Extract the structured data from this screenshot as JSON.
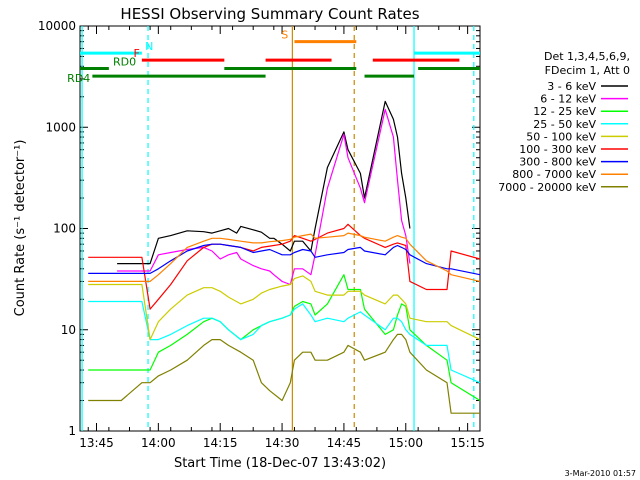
{
  "chart_data": {
    "type": "line",
    "title": "HESSI Observing Summary Count Rates",
    "xlabel": "Start Time (18-Dec-07 13:43:02)",
    "ylabel": "Count Rate (s⁻¹ detector⁻¹)",
    "x_unit": "minutes after 13:43:02",
    "xlim": [
      -2,
      95
    ],
    "ylim": [
      1,
      10000
    ],
    "y_scale": "log",
    "x_tick_labels": [
      "13:45",
      "14:00",
      "14:15",
      "14:30",
      "14:45",
      "15:00",
      "15:15"
    ],
    "x_tick_positions": [
      2,
      17,
      32,
      47,
      62,
      77,
      92
    ],
    "y_tick_labels": [
      "1",
      "10",
      "100",
      "1000",
      "10000"
    ],
    "y_tick_values": [
      1,
      10,
      100,
      1000,
      10000
    ],
    "legend_header": [
      "Det 1,3,4,5,6,9,",
      "FDecim 1, Att 0"
    ],
    "series": [
      {
        "name": "3 - 6 keV",
        "color": "#000000",
        "x": [
          7,
          8,
          15,
          17,
          20,
          24,
          28,
          30,
          32,
          34,
          36,
          37,
          40,
          42,
          44,
          45,
          47,
          49,
          50,
          52,
          54,
          55,
          58,
          62,
          63,
          66,
          67,
          72,
          74,
          75,
          76,
          77,
          78
        ],
        "y": [
          45,
          45,
          45,
          80,
          85,
          95,
          93,
          90,
          95,
          100,
          90,
          105,
          97,
          92,
          80,
          80,
          70,
          60,
          75,
          75,
          60,
          100,
          400,
          900,
          600,
          350,
          200,
          1800,
          1200,
          800,
          350,
          200,
          100
        ]
      },
      {
        "name": "6 - 12 keV",
        "color": "#ff00ff",
        "x": [
          7,
          8,
          15,
          17,
          20,
          24,
          28,
          30,
          32,
          34,
          36,
          37,
          40,
          42,
          44,
          45,
          47,
          49,
          50,
          52,
          54,
          55,
          58,
          62,
          63,
          66,
          67,
          72,
          74,
          75,
          76,
          77,
          78
        ],
        "y": [
          38,
          38,
          38,
          55,
          58,
          62,
          65,
          60,
          50,
          55,
          58,
          50,
          43,
          40,
          38,
          35,
          30,
          28,
          40,
          40,
          35,
          55,
          250,
          850,
          500,
          250,
          180,
          1500,
          800,
          300,
          120,
          85,
          45
        ]
      },
      {
        "name": "12 - 25 keV",
        "color": "#00ff00",
        "x": [
          0,
          7,
          8,
          15,
          17,
          20,
          24,
          28,
          30,
          32,
          34,
          37,
          40,
          42,
          44,
          47,
          49,
          50,
          52,
          54,
          55,
          58,
          62,
          63,
          66,
          67,
          72,
          74,
          75,
          76,
          77,
          78,
          82,
          87,
          88,
          95
        ],
        "y": [
          4,
          4,
          4,
          4,
          6,
          7,
          9,
          12,
          13,
          12,
          10,
          8,
          10,
          11,
          12,
          13,
          14,
          17,
          19,
          18,
          14,
          18,
          35,
          25,
          25,
          16,
          9,
          10,
          14,
          18,
          17,
          10,
          7,
          5,
          3,
          2
        ]
      },
      {
        "name": "25 - 50 keV",
        "color": "#00ffff",
        "x": [
          0,
          7,
          8,
          13,
          15,
          17,
          20,
          24,
          28,
          30,
          32,
          34,
          37,
          40,
          42,
          44,
          47,
          49,
          50,
          52,
          54,
          55,
          58,
          62,
          63,
          66,
          67,
          72,
          74,
          75,
          76,
          77,
          78,
          82,
          87,
          88,
          95
        ],
        "y": [
          19,
          19,
          19,
          19,
          8,
          8,
          9,
          11,
          13,
          13,
          12,
          10,
          8,
          9,
          11,
          12,
          13,
          14,
          16,
          18,
          14,
          12,
          13,
          12,
          13,
          15,
          14,
          10,
          13,
          13,
          12,
          10,
          9,
          7,
          7,
          4,
          3
        ]
      },
      {
        "name": "50 - 100 keV",
        "color": "#cccc00",
        "x": [
          0,
          7,
          8,
          13,
          15,
          17,
          20,
          24,
          28,
          30,
          32,
          34,
          37,
          40,
          42,
          44,
          47,
          49,
          50,
          52,
          54,
          55,
          58,
          62,
          63,
          66,
          67,
          72,
          74,
          75,
          76,
          77,
          78,
          82,
          87,
          88,
          95
        ],
        "y": [
          28,
          28,
          28,
          28,
          8,
          12,
          16,
          22,
          26,
          26,
          24,
          21,
          18,
          20,
          23,
          25,
          27,
          28,
          32,
          34,
          30,
          24,
          22,
          22,
          24,
          24,
          22,
          18,
          22,
          22,
          20,
          18,
          13,
          12,
          12,
          11,
          8
        ]
      },
      {
        "name": "100 - 300 keV",
        "color": "#ff0000",
        "x": [
          0,
          7,
          8,
          13,
          15,
          17,
          20,
          24,
          28,
          30,
          32,
          34,
          37,
          40,
          42,
          44,
          47,
          49,
          50,
          52,
          54,
          55,
          58,
          62,
          63,
          66,
          67,
          72,
          74,
          75,
          76,
          77,
          78,
          82,
          87,
          88,
          95
        ],
        "y": [
          52,
          52,
          52,
          52,
          16,
          20,
          28,
          48,
          65,
          70,
          70,
          68,
          65,
          60,
          65,
          67,
          70,
          75,
          85,
          80,
          75,
          78,
          90,
          100,
          110,
          85,
          80,
          65,
          70,
          72,
          70,
          68,
          30,
          25,
          25,
          60,
          50
        ]
      },
      {
        "name": "300 - 800 keV",
        "color": "#0000ff",
        "x": [
          0,
          7,
          8,
          13,
          15,
          17,
          20,
          24,
          28,
          30,
          32,
          34,
          37,
          40,
          42,
          44,
          47,
          49,
          50,
          52,
          54,
          55,
          58,
          62,
          63,
          66,
          67,
          72,
          74,
          75,
          76,
          77,
          78,
          82,
          87,
          88,
          95
        ],
        "y": [
          36,
          36,
          36,
          36,
          36,
          40,
          48,
          60,
          68,
          70,
          70,
          68,
          65,
          58,
          60,
          62,
          55,
          55,
          58,
          62,
          60,
          52,
          55,
          58,
          62,
          65,
          60,
          55,
          65,
          68,
          65,
          62,
          55,
          45,
          40,
          40,
          35
        ]
      },
      {
        "name": "800 - 7000 keV",
        "color": "#ff8000",
        "x": [
          0,
          7,
          8,
          13,
          15,
          17,
          20,
          24,
          28,
          30,
          32,
          34,
          37,
          40,
          42,
          44,
          47,
          49,
          50,
          52,
          54,
          55,
          58,
          62,
          63,
          66,
          67,
          72,
          74,
          75,
          76,
          77,
          78,
          82,
          87,
          88,
          95
        ],
        "y": [
          30,
          30,
          30,
          30,
          30,
          35,
          45,
          65,
          75,
          80,
          80,
          78,
          75,
          72,
          72,
          74,
          76,
          78,
          82,
          85,
          88,
          80,
          82,
          85,
          90,
          85,
          82,
          75,
          82,
          85,
          82,
          80,
          70,
          48,
          38,
          35,
          30
        ]
      },
      {
        "name": "7000 - 20000 keV",
        "color": "#808000",
        "x": [
          0,
          7,
          8,
          13,
          15,
          17,
          20,
          24,
          28,
          30,
          32,
          34,
          37,
          40,
          42,
          44,
          47,
          49,
          50,
          52,
          54,
          55,
          58,
          62,
          63,
          66,
          67,
          72,
          74,
          75,
          76,
          77,
          78,
          82,
          87,
          88,
          95
        ],
        "y": [
          2,
          2,
          2,
          3,
          3,
          3.5,
          4,
          5,
          7,
          8,
          8,
          7,
          6,
          5,
          3,
          2.5,
          2,
          3,
          5,
          6,
          6,
          5,
          5,
          6,
          7,
          6,
          5,
          6,
          8,
          9,
          9,
          8,
          6,
          4,
          3,
          1.5,
          1.5
        ]
      }
    ],
    "vertical_lines": [
      {
        "x": 14.5,
        "color": "#00ffff",
        "style": "dashed"
      },
      {
        "x": -1.5,
        "color": "#00ffff",
        "style": "solid"
      },
      {
        "x": 49.5,
        "color": "#cc8800",
        "style": "solid"
      },
      {
        "x": 64.5,
        "color": "#cc8800",
        "style": "dashed"
      },
      {
        "x": 79,
        "color": "#00ffff",
        "style": "solid"
      },
      {
        "x": 93.5,
        "color": "#00ffff",
        "style": "dashed"
      }
    ],
    "annotation_bars": [
      {
        "label": "N",
        "color": "#00ffff",
        "level": 5400,
        "segments": [
          [
            -2,
            13
          ],
          [
            79,
            95
          ]
        ]
      },
      {
        "label": "S",
        "color": "#ff8000",
        "level": 7000,
        "segments": [
          [
            50,
            65
          ]
        ]
      },
      {
        "label": "F",
        "color": "#ff0000",
        "level": 4600,
        "segments": [
          [
            13,
            33
          ],
          [
            43,
            59
          ],
          [
            69,
            90
          ]
        ]
      },
      {
        "label": "RD0",
        "color": "#008000",
        "level": 3800,
        "segments": [
          [
            -2,
            5
          ],
          [
            33,
            65
          ],
          [
            80,
            95
          ]
        ]
      },
      {
        "label": "RD4",
        "color": "#008000",
        "level": 3200,
        "segments": [
          [
            1,
            43
          ],
          [
            67,
            79
          ]
        ]
      }
    ],
    "footer_timestamp": "3-Mar-2010 01:57"
  }
}
